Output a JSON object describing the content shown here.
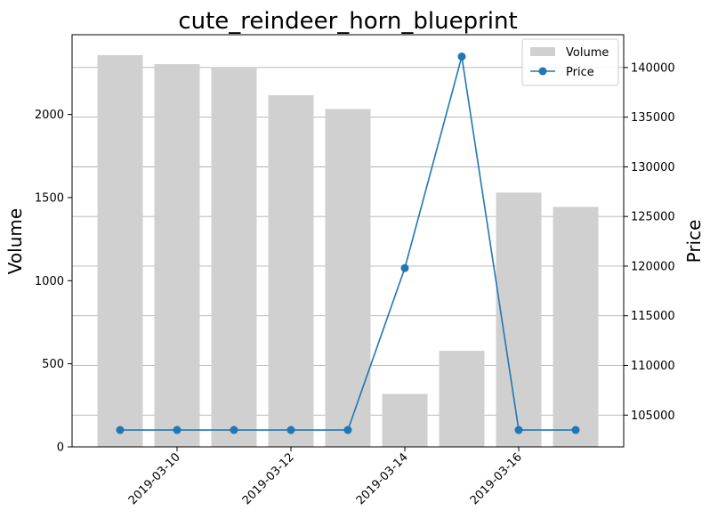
{
  "chart_data": {
    "type": "bar+line",
    "title": "cute_reindeer_horn_blueprint",
    "xlabel": "",
    "ylabel_left": "Volume",
    "ylabel_right": "Price",
    "dates": [
      "2019-03-09",
      "2019-03-10",
      "2019-03-11",
      "2019-03-12",
      "2019-03-13",
      "2019-03-14",
      "2019-03-15",
      "2019-03-16",
      "2019-03-17"
    ],
    "x_ticks": [
      "2019-03-10",
      "2019-03-12",
      "2019-03-14",
      "2019-03-16"
    ],
    "volume": [
      2357,
      2303,
      2283,
      2116,
      2033,
      319,
      578,
      1530,
      1444
    ],
    "price": [
      103500,
      103500,
      103500,
      103500,
      103500,
      119800,
      141100,
      103500,
      103500
    ],
    "ylim_left": [
      0,
      2480
    ],
    "ylim_right": [
      101800,
      143300
    ],
    "yticks_left": [
      0,
      500,
      1000,
      1500,
      2000
    ],
    "yticks_right": [
      105000,
      110000,
      115000,
      120000,
      125000,
      130000,
      135000,
      140000
    ],
    "grid": "horizontal (right axis)",
    "legend": {
      "placement": "upper-right",
      "entries": [
        {
          "label": "Volume",
          "color": "#d0d0d0"
        },
        {
          "label": "Price",
          "color": "#1f77b4"
        }
      ]
    },
    "colors": {
      "bar": "#d0d0d0",
      "line": "#1f77b4",
      "grid": "#b0b0b0"
    }
  }
}
